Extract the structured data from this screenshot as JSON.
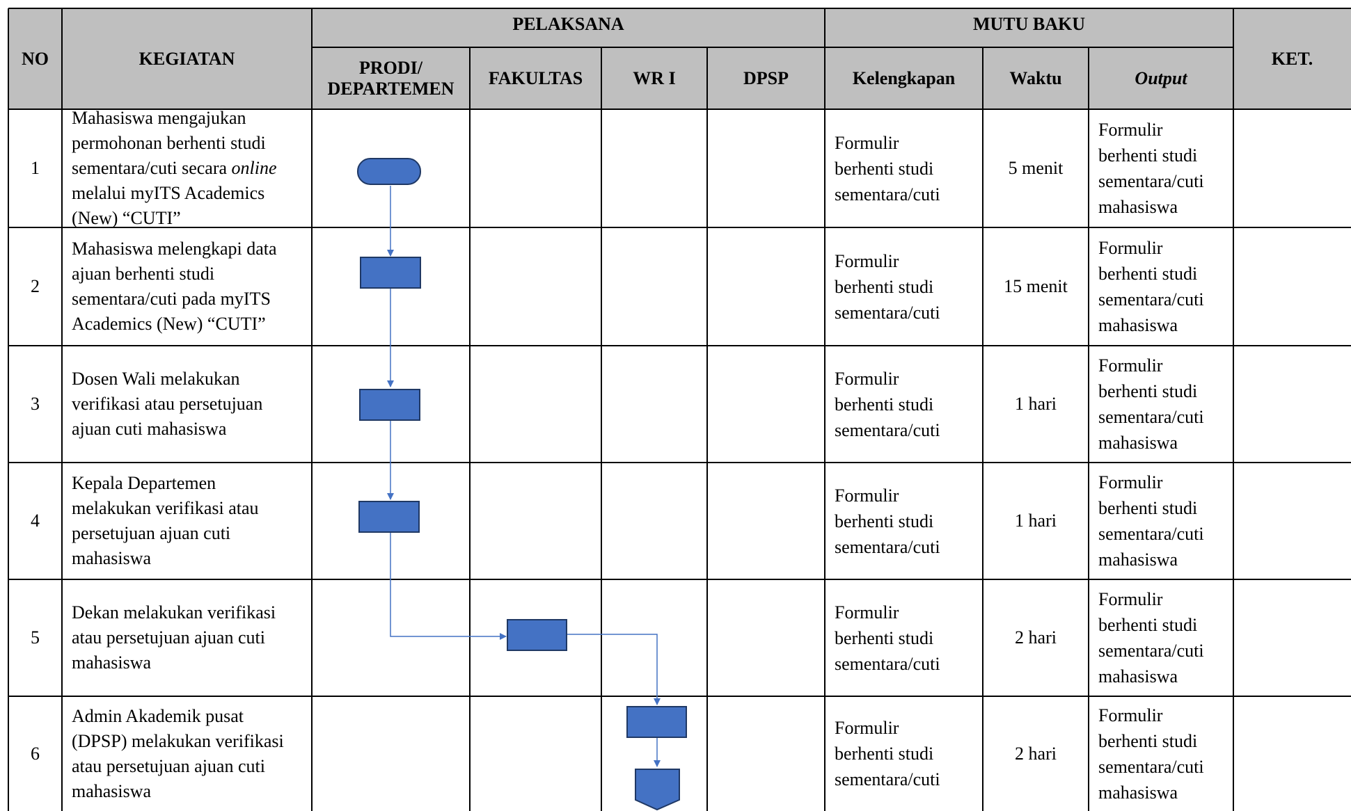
{
  "headers": {
    "no": "NO",
    "kegiatan": "KEGIATAN",
    "pelaksana": "PELAKSANA",
    "mutu_baku": "MUTU BAKU",
    "ket": "KET.",
    "prodi_line1": "PRODI/",
    "prodi_line2": "DEPARTEMEN",
    "fakultas": "FAKULTAS",
    "wr1": "WR I",
    "dpsp": "DPSP",
    "kelengkapan": "Kelengkapan",
    "waktu": "Waktu",
    "output": "Output"
  },
  "rows": [
    {
      "no": "1",
      "kegiatan_a": "Mahasiswa mengajukan permohonan berhenti studi sementara/cuti secara ",
      "kegiatan_ital": "online",
      "kegiatan_b": " melalui myITS Academics (New) “CUTI”",
      "kelengkapan": "Formulir berhenti studi sementara/cuti",
      "waktu": "5 menit",
      "output": "Formulir berhenti studi sementara/cuti mahasiswa",
      "ket": ""
    },
    {
      "no": "2",
      "kegiatan": "Mahasiswa melengkapi data ajuan berhenti studi sementara/cuti pada myITS Academics (New) “CUTI”",
      "kelengkapan": "Formulir berhenti studi sementara/cuti",
      "waktu": "15 menit",
      "output": "Formulir berhenti studi sementara/cuti mahasiswa",
      "ket": ""
    },
    {
      "no": "3",
      "kegiatan": "Dosen Wali melakukan verifikasi atau persetujuan ajuan cuti mahasiswa",
      "kelengkapan": "Formulir berhenti studi sementara/cuti",
      "waktu": "1 hari",
      "output": "Formulir berhenti studi sementara/cuti mahasiswa",
      "ket": ""
    },
    {
      "no": "4",
      "kegiatan": "Kepala Departemen melakukan verifikasi atau persetujuan ajuan cuti mahasiswa",
      "kelengkapan": "Formulir berhenti studi sementara/cuti",
      "waktu": "1 hari",
      "output": "Formulir berhenti studi sementara/cuti mahasiswa",
      "ket": ""
    },
    {
      "no": "5",
      "kegiatan": "Dekan melakukan verifikasi atau persetujuan ajuan cuti mahasiswa",
      "kelengkapan": "Formulir berhenti studi sementara/cuti",
      "waktu": "2 hari",
      "output": "Formulir berhenti studi sementara/cuti mahasiswa",
      "ket": ""
    },
    {
      "no": "6",
      "kegiatan": "Admin Akademik pusat (DPSP) melakukan verifikasi atau persetujuan ajuan cuti mahasiswa",
      "kelengkapan": "Formulir berhenti studi sementara/cuti",
      "waktu": "2 hari",
      "output": "Formulir berhenti studi sementara/cuti mahasiswa",
      "ket": ""
    }
  ],
  "colors": {
    "header_bg": "#bfbfbf",
    "shape_fill": "#4472c4",
    "shape_stroke": "#1f3864",
    "connector": "#4472c4"
  }
}
